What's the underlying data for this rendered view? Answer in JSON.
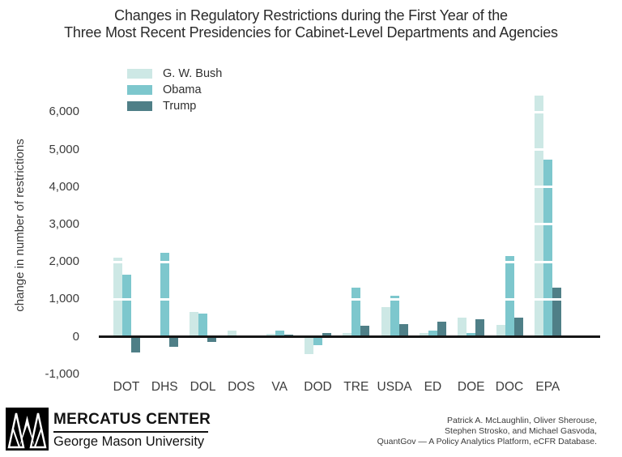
{
  "title": {
    "line1": "Changes in Regulatory Restrictions during the First Year of the",
    "line2": "Three Most Recent Presidencies for Cabinet-Level Departments and Agencies"
  },
  "chart_data": {
    "type": "bar",
    "title": "Changes in Regulatory Restrictions during the First Year of the Three Most Recent Presidencies for Cabinet-Level Departments and Agencies",
    "xlabel": "",
    "ylabel": "change in number of restrictions",
    "categories": [
      "DOT",
      "DHS",
      "DOL",
      "DOS",
      "VA",
      "DOD",
      "TRE",
      "USDA",
      "ED",
      "DOE",
      "DOC",
      "EPA"
    ],
    "series": [
      {
        "name": "G. W. Bush",
        "color": "#cde8e5",
        "values": [
          2100,
          0,
          660,
          170,
          70,
          -470,
          95,
          780,
          90,
          505,
          310,
          6450
        ]
      },
      {
        "name": "Obama",
        "color": "#7dc7cd",
        "values": [
          1650,
          2250,
          610,
          0,
          160,
          -220,
          1300,
          1090,
          155,
          95,
          2160,
          4730
        ]
      },
      {
        "name": "Trump",
        "color": "#4f7f87",
        "values": [
          -430,
          -270,
          -150,
          0,
          60,
          90,
          285,
          335,
          390,
          470,
          515,
          1320
        ]
      }
    ],
    "yticks": [
      -1000,
      0,
      1000,
      2000,
      3000,
      4000,
      5000,
      6000
    ],
    "ytick_labels": [
      "-1,000",
      "0",
      "1,000",
      "2,000",
      "3,000",
      "4,000",
      "5,000",
      "6,000"
    ],
    "ylim": [
      -1100,
      6600
    ],
    "legend_position": "top-left",
    "gridlines": "white lines at each 1,000 drawn over the bars",
    "axis_line_color": "#161616",
    "background_color": "#ffffff"
  },
  "footer": {
    "logo_title": "MERCATUS CENTER",
    "logo_subtitle": "George Mason University",
    "credits_line1": "Patrick A. McLaughlin, Oliver Sherouse,",
    "credits_line2": "Stephen Strosko, and Michael Gasvoda,",
    "credits_line3": "QuantGov — A Policy Analytics Platform, eCFR Database."
  }
}
